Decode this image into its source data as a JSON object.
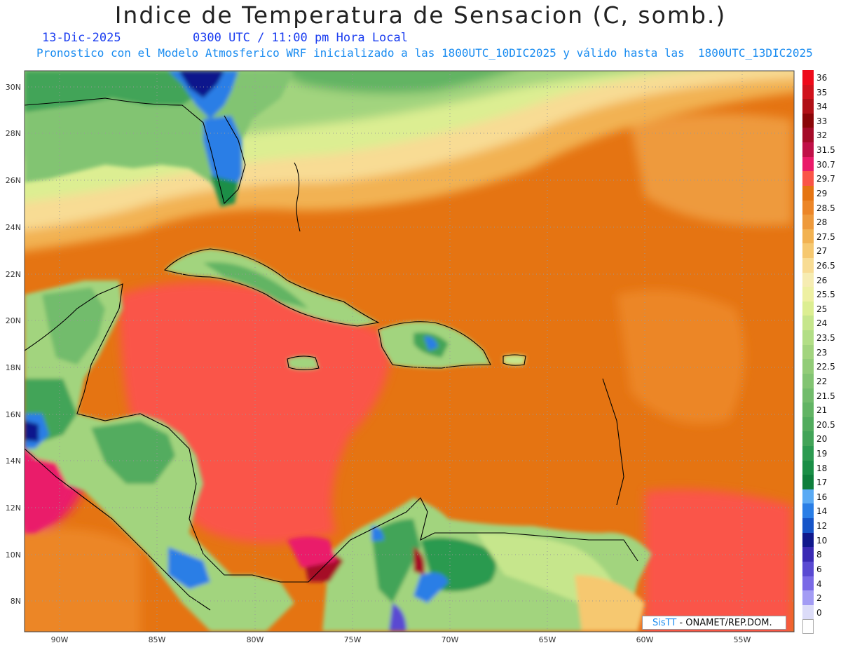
{
  "header": {
    "title": "Indice de Temperatura de Sensacion (C, somb.)",
    "date": "13-Dic-2025",
    "time": "0300 UTC / 11:00 pm Hora Local",
    "subtitle": "Pronostico con el Modelo Atmosferico WRF inicializado a las 1800UTC_10DIC2025 y válido hasta las  1800UTC_13DIC2025"
  },
  "axes": {
    "lat_labels": [
      "30N",
      "28N",
      "26N",
      "24N",
      "22N",
      "20N",
      "18N",
      "16N",
      "14N",
      "12N",
      "10N",
      "8N"
    ],
    "lon_labels": [
      "90W",
      "85W",
      "80W",
      "75W",
      "70W",
      "65W",
      "60W",
      "55W"
    ]
  },
  "legend": {
    "levels": [
      {
        "label": "36",
        "color": "#ee0a1a"
      },
      {
        "label": "35",
        "color": "#d0121c"
      },
      {
        "label": "34",
        "color": "#b01016"
      },
      {
        "label": "33",
        "color": "#8a0608"
      },
      {
        "label": "32",
        "color": "#a50b28"
      },
      {
        "label": "31.5",
        "color": "#c01048"
      },
      {
        "label": "30.7",
        "color": "#ea1a6a"
      },
      {
        "label": "29.7",
        "color": "#fa5548"
      },
      {
        "label": "29",
        "color": "#e57412"
      },
      {
        "label": "28.5",
        "color": "#ec8628"
      },
      {
        "label": "28",
        "color": "#ee9a3c"
      },
      {
        "label": "27.5",
        "color": "#f2b252"
      },
      {
        "label": "27",
        "color": "#f6c870"
      },
      {
        "label": "26.5",
        "color": "#f8dc94"
      },
      {
        "label": "26",
        "color": "#f6ecb2"
      },
      {
        "label": "25.5",
        "color": "#eef0a2"
      },
      {
        "label": "25",
        "color": "#dcee92"
      },
      {
        "label": "24",
        "color": "#c6e68c"
      },
      {
        "label": "23.5",
        "color": "#b2de86"
      },
      {
        "label": "23",
        "color": "#a2d47e"
      },
      {
        "label": "22.5",
        "color": "#92cc78"
      },
      {
        "label": "22",
        "color": "#82c472"
      },
      {
        "label": "21.5",
        "color": "#72bc6c"
      },
      {
        "label": "21",
        "color": "#62b464"
      },
      {
        "label": "20.5",
        "color": "#52ac5e"
      },
      {
        "label": "20",
        "color": "#42a458"
      },
      {
        "label": "19",
        "color": "#2c9a50"
      },
      {
        "label": "18",
        "color": "#1a8e46"
      },
      {
        "label": "17",
        "color": "#0e7e3c"
      },
      {
        "label": "16",
        "color": "#5aaaf4"
      },
      {
        "label": "14",
        "color": "#2a7ee6"
      },
      {
        "label": "12",
        "color": "#1655c8"
      },
      {
        "label": "10",
        "color": "#10188c"
      },
      {
        "label": "8",
        "color": "#3a2ab4"
      },
      {
        "label": "6",
        "color": "#5a4ad2"
      },
      {
        "label": "4",
        "color": "#7a6ae6"
      },
      {
        "label": "2",
        "color": "#a39cf4"
      },
      {
        "label": "0",
        "color": "#dcdcf8"
      },
      {
        "label": "",
        "color": "#ffffff"
      }
    ]
  },
  "credit": {
    "brand": "SisTT",
    "text": " - ONAMET/REP.DOM."
  }
}
